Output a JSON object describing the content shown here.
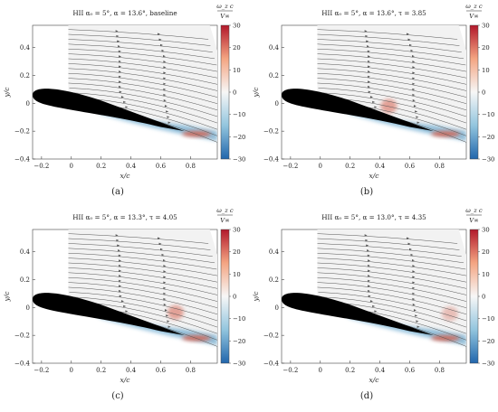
{
  "panels": [
    {
      "title": "HII α₀ = 5°, α = 13.6°, baseline",
      "caption": "(a)",
      "vortex_strength": 0.0,
      "vortex_x": 0.45
    },
    {
      "title": "HII α₀ = 5°, α = 13.6°, τ = 3.85",
      "caption": "(b)",
      "vortex_strength": 0.55,
      "vortex_x": 0.46
    },
    {
      "title": "HII α₀ = 5°, α = 13.3°, τ = 4.05",
      "caption": "(c)",
      "vortex_strength": 0.55,
      "vortex_x": 0.7
    },
    {
      "title": "HII α₀ = 5°, α = 13.0°, τ = 4.35",
      "caption": "(d)",
      "vortex_strength": 0.35,
      "vortex_x": 0.87
    }
  ],
  "axes": {
    "xlabel": "x/c",
    "ylabel": "y/c",
    "xticks": [
      "−0.2",
      "0",
      "0.2",
      "0.4",
      "0.6",
      "0.8"
    ],
    "xtick_values": [
      -0.2,
      0,
      0.2,
      0.4,
      0.6,
      0.8
    ],
    "yticks": [
      "0.4",
      "0.2",
      "0",
      "−0.2",
      "−0.4"
    ],
    "ytick_values": [
      0.4,
      0.2,
      0,
      -0.2,
      -0.4
    ],
    "xlim": [
      -0.26,
      0.98
    ],
    "ylim": [
      -0.4,
      0.56
    ]
  },
  "colorbar": {
    "label_num": "ω_z c",
    "label_den": "V∞",
    "ticks": [
      "30",
      "20",
      "10",
      "0",
      "−10",
      "−20",
      "−30"
    ],
    "tick_values": [
      30,
      20,
      10,
      0,
      -10,
      -20,
      -30
    ],
    "range": [
      -30,
      30
    ],
    "color_top": "#b2182b",
    "color_mid": "#f7f7f7",
    "color_bottom": "#2166ac"
  },
  "colors": {
    "airfoil": "#000000",
    "streamline": "#555555",
    "positive_vorticity": "#d6604d",
    "negative_vorticity": "#4393c3"
  }
}
